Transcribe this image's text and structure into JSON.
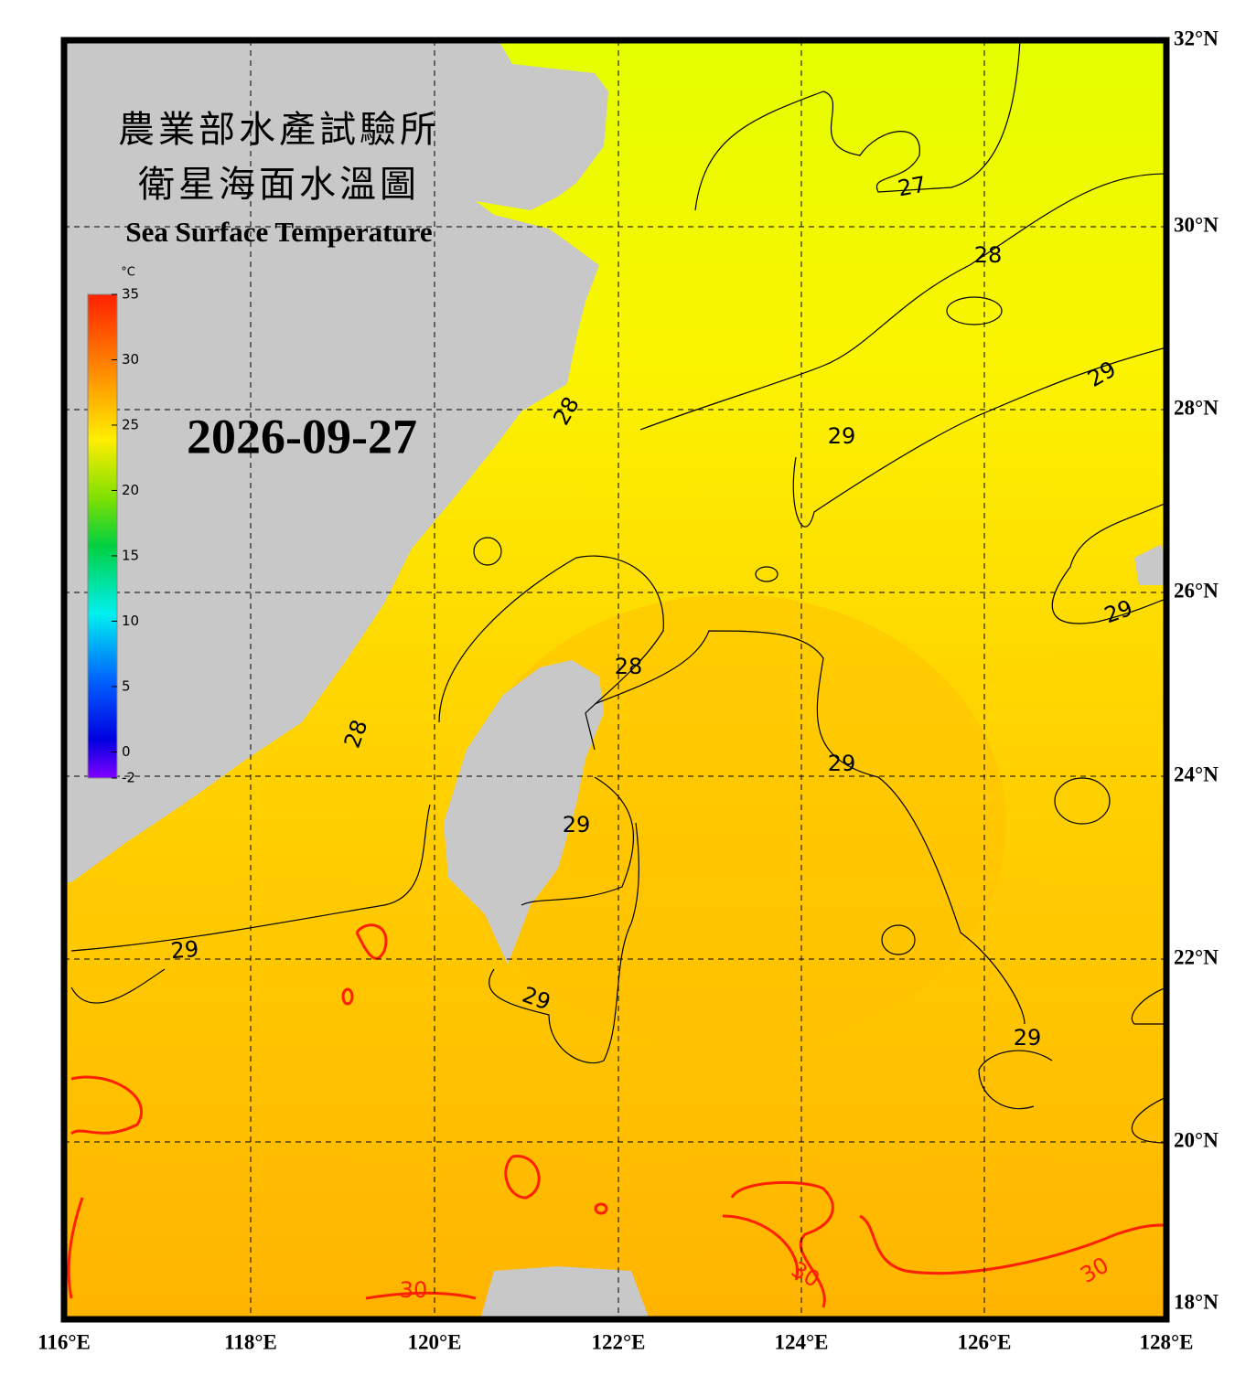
{
  "header": {
    "title_zh": "農業部水產試驗所",
    "subtitle_zh": "衛星海面水溫圖",
    "title_en": "Sea Surface Temperature"
  },
  "date": "2026-09-27",
  "colorbar": {
    "unit": "°C",
    "range": [
      -2,
      35
    ],
    "ticks": [
      35,
      30,
      25,
      20,
      15,
      10,
      5,
      0,
      -2
    ]
  },
  "map": {
    "lon_labels": [
      "116°E",
      "118°E",
      "120°E",
      "122°E",
      "124°E",
      "126°E",
      "128°E"
    ],
    "lat_labels": [
      "32°N",
      "30°N",
      "28°N",
      "26°N",
      "24°N",
      "22°N",
      "20°N",
      "18°N"
    ],
    "contour_labels": [
      "27",
      "28",
      "29",
      "28",
      "29",
      "28",
      "29",
      "28",
      "29",
      "29",
      "29",
      "29",
      "29",
      "30",
      "30",
      "30"
    ]
  }
}
